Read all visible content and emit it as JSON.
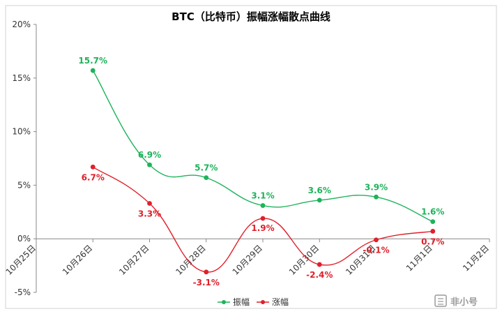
{
  "chart_data": {
    "type": "line",
    "title": "BTC（比特币）振幅涨幅散点曲线",
    "categories": [
      "10月25日",
      "10月26日",
      "10月27日",
      "10月28日",
      "10月29日",
      "10月30日",
      "10月31日",
      "11月1日",
      "11月2日"
    ],
    "yticks": [
      "-5%",
      "0%",
      "5%",
      "10%",
      "15%",
      "20%"
    ],
    "ylim": [
      -5,
      20
    ],
    "grid": false,
    "legend_position": "bottom",
    "series": [
      {
        "name": "振幅",
        "color": "#1db35a",
        "values": [
          null,
          15.7,
          6.9,
          5.7,
          3.1,
          3.6,
          3.9,
          1.6,
          null
        ],
        "labels": [
          "",
          "15.7%",
          "6.9%",
          "5.7%",
          "3.1%",
          "3.6%",
          "3.9%",
          "1.6%",
          ""
        ]
      },
      {
        "name": "涨幅",
        "color": "#e0202a",
        "values": [
          null,
          6.7,
          3.3,
          -3.1,
          1.9,
          -2.4,
          -0.1,
          0.7,
          null
        ],
        "labels": [
          "",
          "6.7%",
          "3.3%",
          "-3.1%",
          "1.9%",
          "-2.4%",
          "-0.1%",
          "0.7%",
          ""
        ]
      }
    ]
  },
  "watermark": {
    "text": "非小号",
    "logo": "feixiaohao-logo-icon"
  }
}
